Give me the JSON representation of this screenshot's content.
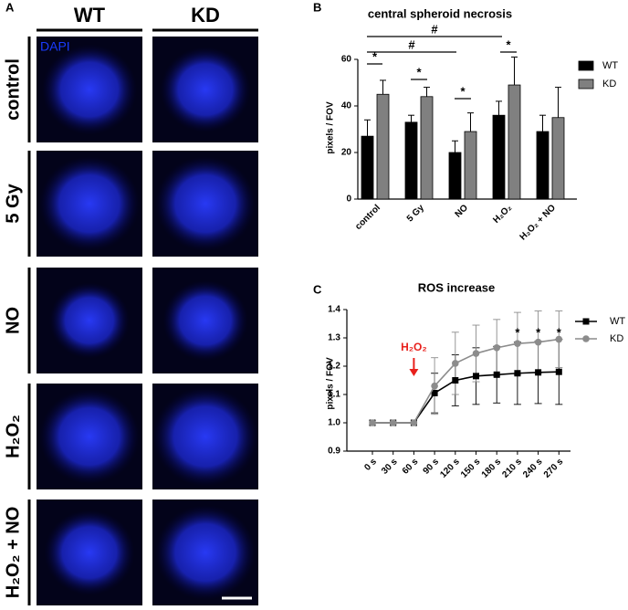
{
  "panel_a": {
    "label": "A",
    "columns": [
      "WT",
      "KD"
    ],
    "rows": [
      "control",
      "5 Gy",
      "NO",
      "H₂O₂",
      "H₂O₂ + NO"
    ],
    "stain": "DAPI"
  },
  "chart_data": [
    {
      "panel": "B",
      "type": "bar",
      "title": "central spheroid necrosis",
      "y_label": "pixels / FOV",
      "categories": [
        "control",
        "5 Gy",
        "NO",
        "H₂O₂",
        "H₂O₂ + NO"
      ],
      "series": [
        {
          "name": "WT",
          "color": "#000000",
          "values": [
            27,
            33,
            20,
            36,
            29
          ],
          "errors": [
            7,
            3,
            5,
            6,
            7
          ]
        },
        {
          "name": "KD",
          "color": "#808080",
          "values": [
            45,
            44,
            29,
            49,
            35
          ],
          "errors": [
            6,
            4,
            8,
            12,
            13
          ]
        }
      ],
      "ylim": [
        0,
        60
      ],
      "yticks": [
        0,
        20,
        40,
        60
      ],
      "legend": "right",
      "annotations": [
        "*",
        "*",
        "*",
        "*",
        "#",
        "#"
      ]
    },
    {
      "panel": "C",
      "type": "line",
      "title": "ROS increase",
      "y_label": "pixels / FOV",
      "categories": [
        "0 s",
        "30 s",
        "60 s",
        "90 s",
        "120 s",
        "150 s",
        "180 s",
        "210 s",
        "240 s",
        "270 s"
      ],
      "series": [
        {
          "name": "WT",
          "color": "#000000",
          "marker": "square",
          "values": [
            1,
            1,
            1,
            1.105,
            1.15,
            1.165,
            1.17,
            1.175,
            1.178,
            1.18
          ],
          "errors": [
            0,
            0,
            0,
            0.07,
            0.09,
            0.1,
            0.1,
            0.11,
            0.11,
            0.115
          ]
        },
        {
          "name": "KD",
          "color": "#8c8c8c",
          "marker": "circle",
          "values": [
            1,
            1,
            1,
            1.13,
            1.21,
            1.245,
            1.265,
            1.28,
            1.285,
            1.295
          ],
          "errors": [
            0,
            0,
            0,
            0.1,
            0.11,
            0.1,
            0.1,
            0.11,
            0.11,
            0.1
          ]
        }
      ],
      "ylim": [
        0.9,
        1.4
      ],
      "yticks": [
        0.9,
        {
          "value": 1,
          "label": "1.0"
        },
        1.1,
        1.2,
        1.3,
        1.4
      ],
      "legend": "right",
      "annotations": [
        "H₂O₂",
        "*",
        "*",
        "*"
      ],
      "annotation_color": "#e8201c"
    }
  ]
}
